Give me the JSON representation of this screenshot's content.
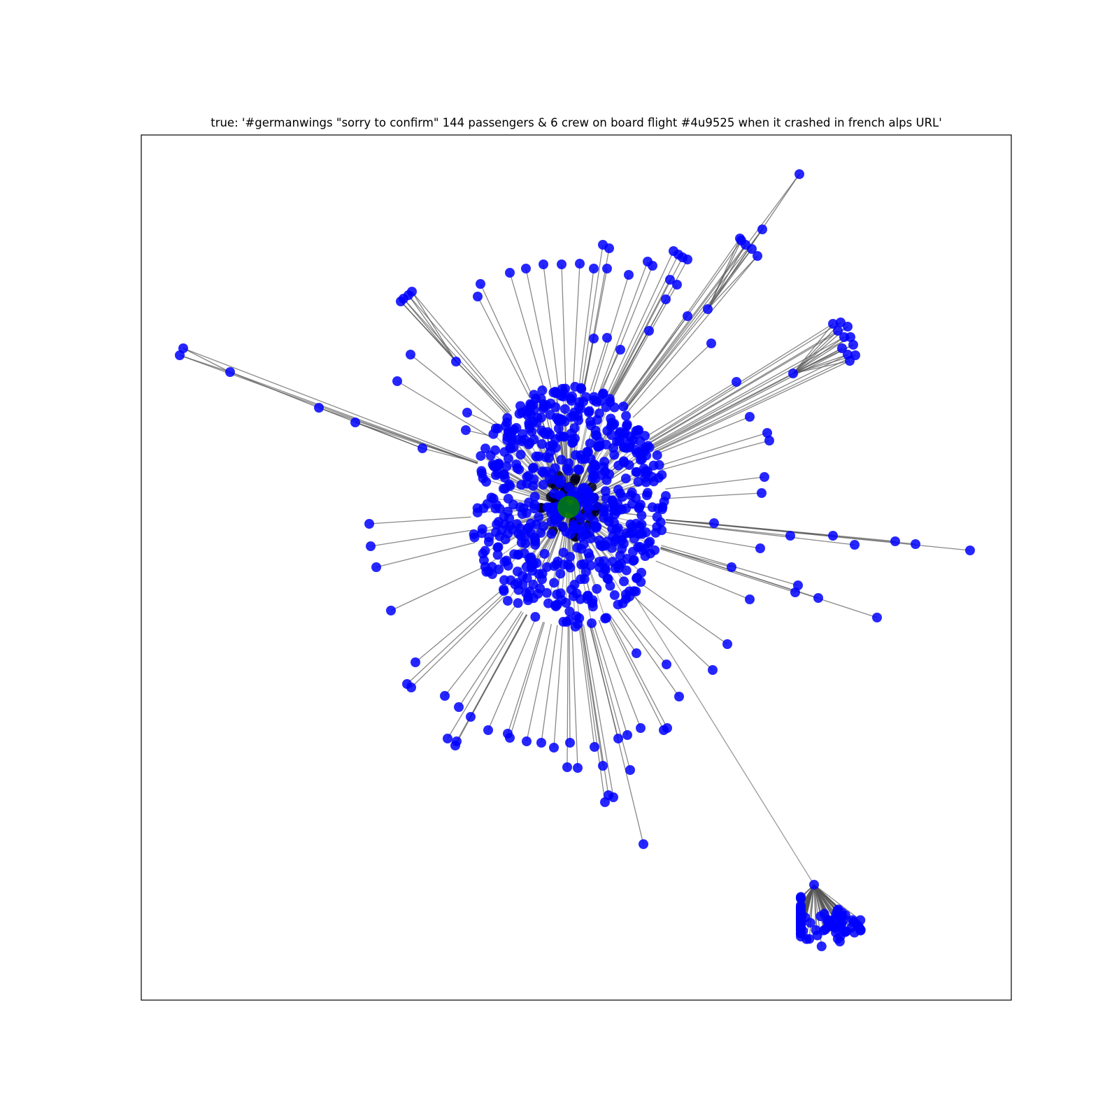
{
  "title": "true: '#germanwings \"sorry to confirm\" 144 passengers & 6 crew on board flight #4u9525 when it crashed in french alps URL'",
  "colors": {
    "node": "#0000ff",
    "root_node": "#008000",
    "edge": "#555555",
    "frame": "#000000"
  },
  "graph": {
    "type": "network",
    "root_label": "root",
    "central_cluster_count": 620
  }
}
